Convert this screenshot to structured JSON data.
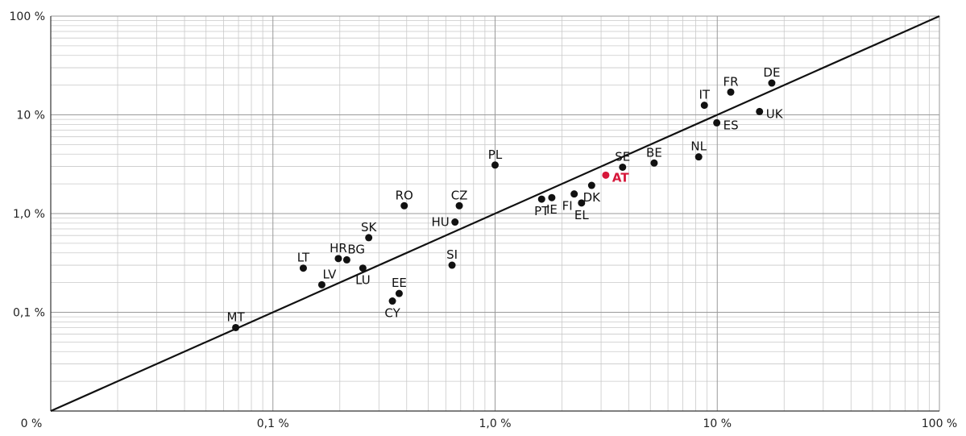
{
  "chart_data": {
    "type": "scatter",
    "scale": "log",
    "xlim": [
      0.01,
      100
    ],
    "ylim": [
      0.01,
      100
    ],
    "x_ticks": [
      {
        "value": 0.01,
        "label": "0 %"
      },
      {
        "value": 0.1,
        "label": "0,1 %"
      },
      {
        "value": 1,
        "label": "1,0 %"
      },
      {
        "value": 10,
        "label": "10 %"
      },
      {
        "value": 100,
        "label": "100 %"
      }
    ],
    "y_ticks": [
      {
        "value": 0.1,
        "label": "0,1 %"
      },
      {
        "value": 1,
        "label": "1,0 %"
      },
      {
        "value": 10,
        "label": "10 %"
      },
      {
        "value": 100,
        "label": "100 %"
      }
    ],
    "grid": true,
    "reference_line": "y = x",
    "highlight_color": "#d6173a",
    "point_color": "#111111",
    "points": [
      {
        "label": "MT",
        "x": 0.068,
        "y": 0.07,
        "pos": "top"
      },
      {
        "label": "LT",
        "x": 0.137,
        "y": 0.28,
        "pos": "top"
      },
      {
        "label": "LV",
        "x": 0.166,
        "y": 0.19,
        "pos": "top-right"
      },
      {
        "label": "HR",
        "x": 0.197,
        "y": 0.35,
        "pos": "top"
      },
      {
        "label": "BG",
        "x": 0.215,
        "y": 0.34,
        "pos": "top-right"
      },
      {
        "label": "LU",
        "x": 0.254,
        "y": 0.28,
        "pos": "bottom"
      },
      {
        "label": "SK",
        "x": 0.27,
        "y": 0.57,
        "pos": "top"
      },
      {
        "label": "RO",
        "x": 0.39,
        "y": 1.2,
        "pos": "top"
      },
      {
        "label": "CY",
        "x": 0.345,
        "y": 0.13,
        "pos": "bottom"
      },
      {
        "label": "EE",
        "x": 0.37,
        "y": 0.155,
        "pos": "top"
      },
      {
        "label": "SI",
        "x": 0.64,
        "y": 0.3,
        "pos": "top"
      },
      {
        "label": "HU",
        "x": 0.66,
        "y": 0.82,
        "pos": "left"
      },
      {
        "label": "CZ",
        "x": 0.69,
        "y": 1.2,
        "pos": "top"
      },
      {
        "label": "PL",
        "x": 1.0,
        "y": 3.1,
        "pos": "top"
      },
      {
        "label": "PT",
        "x": 1.62,
        "y": 1.4,
        "pos": "bottom"
      },
      {
        "label": "IE",
        "x": 1.8,
        "y": 1.45,
        "pos": "bottom"
      },
      {
        "label": "FI",
        "x": 2.27,
        "y": 1.58,
        "pos": "bottom-left"
      },
      {
        "label": "EL",
        "x": 2.45,
        "y": 1.28,
        "pos": "bottom"
      },
      {
        "label": "DK",
        "x": 2.72,
        "y": 1.93,
        "pos": "bottom"
      },
      {
        "label": "AT",
        "x": 3.15,
        "y": 2.45,
        "pos": "right",
        "highlight": true
      },
      {
        "label": "SE",
        "x": 3.75,
        "y": 2.95,
        "pos": "top"
      },
      {
        "label": "BE",
        "x": 5.2,
        "y": 3.25,
        "pos": "top"
      },
      {
        "label": "NL",
        "x": 8.25,
        "y": 3.75,
        "pos": "top"
      },
      {
        "label": "IT",
        "x": 8.75,
        "y": 12.5,
        "pos": "top"
      },
      {
        "label": "ES",
        "x": 9.95,
        "y": 8.3,
        "pos": "right"
      },
      {
        "label": "FR",
        "x": 11.5,
        "y": 17,
        "pos": "top"
      },
      {
        "label": "UK",
        "x": 15.5,
        "y": 10.8,
        "pos": "right"
      },
      {
        "label": "DE",
        "x": 17.6,
        "y": 21,
        "pos": "top"
      }
    ]
  }
}
